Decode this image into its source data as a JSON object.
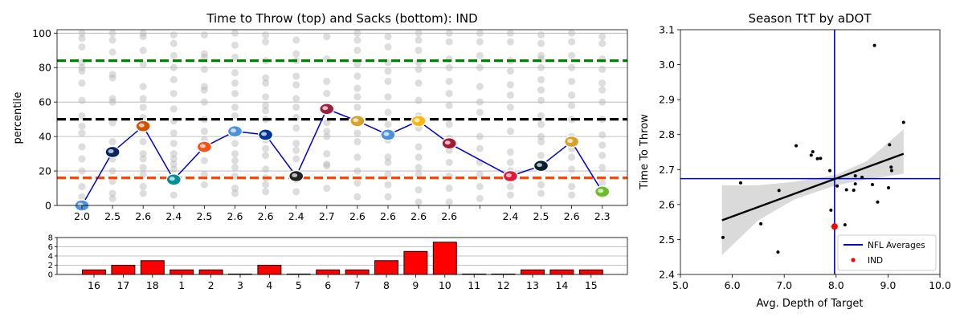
{
  "colors": {
    "line": "#0000cc",
    "bars": "#ff0000",
    "green_ref": "#008000",
    "black_ref": "#000000",
    "orange_ref": "#ff4500",
    "scatter_league": "#000000",
    "ind_point": "#ff0000",
    "nfl_avg": "#0000cc",
    "band": "#d3d3d3"
  },
  "chart_data": [
    {
      "type": "line",
      "title": "Time to Throw (top) and Sacks (bottom): IND",
      "ylabel": "percentile",
      "ylim": [
        0,
        102
      ],
      "yticks": [
        0,
        20,
        40,
        60,
        80,
        100
      ],
      "grid": "y",
      "x_tick_labels": [
        "2.0",
        "2.5",
        "2.6",
        "2.4",
        "2.5",
        "2.6",
        "2.6",
        "2.4",
        "2.7",
        "2.6",
        "2.6",
        "2.6",
        "2.6",
        "",
        "2.4",
        "2.5",
        "2.6",
        "2.3"
      ],
      "opponents": [
        "TEN",
        "NYG",
        "CLE",
        "MIA",
        "DEN",
        "TEN",
        "LAR",
        "LV",
        "ARI",
        "JAX",
        "TEN",
        "PIT",
        "ATL",
        "",
        "KC",
        "HOU",
        "JAX",
        "SEA"
      ],
      "series": [
        {
          "values": [
            0,
            31,
            46,
            15,
            34,
            43,
            41,
            17,
            56,
            49,
            41,
            49,
            36,
            null,
            17,
            23,
            37,
            8
          ]
        }
      ],
      "reference_lines": [
        {
          "value": 84,
          "color": "green"
        },
        {
          "value": 50,
          "color": "black"
        },
        {
          "value": 16,
          "color": "orangered"
        }
      ],
      "background_points": [
        [
          100,
          97,
          92,
          83,
          80,
          78,
          71,
          61,
          52,
          46,
          42,
          34,
          27,
          20,
          11,
          5
        ],
        [
          100,
          96,
          89,
          76,
          74,
          62,
          60,
          48,
          37,
          27,
          20,
          14,
          7,
          4
        ],
        [
          100,
          98,
          90,
          82,
          69,
          62,
          57,
          51,
          37,
          30,
          27,
          22,
          18,
          11,
          7
        ],
        [
          99,
          94,
          87,
          80,
          73,
          65,
          56,
          49,
          42,
          36,
          30,
          27,
          24,
          21,
          16,
          6
        ],
        [
          99,
          88,
          86,
          79,
          69,
          67,
          60,
          50,
          43,
          38,
          33,
          26,
          18,
          12
        ],
        [
          100,
          93,
          86,
          77,
          71,
          65,
          57,
          52,
          44,
          36,
          30,
          26,
          22,
          17,
          10,
          7
        ],
        [
          99,
          95,
          84,
          74,
          71,
          63,
          58,
          55,
          50,
          38,
          33,
          29,
          21,
          16,
          12,
          8
        ],
        [
          96,
          88,
          84,
          75,
          70,
          62,
          57,
          51,
          45,
          36,
          32,
          27,
          15,
          8
        ],
        [
          98,
          85,
          72,
          65,
          55,
          48,
          43,
          40,
          30,
          24,
          23,
          10
        ],
        [
          100,
          96,
          90,
          82,
          75,
          68,
          63,
          57,
          42,
          37,
          28,
          20,
          13,
          5
        ],
        [
          98,
          92,
          83,
          78,
          72,
          63,
          54,
          47,
          38,
          28,
          25,
          18,
          12,
          5
        ],
        [
          100,
          96,
          90,
          83,
          79,
          71,
          61,
          52,
          45,
          34,
          28,
          22,
          18,
          9,
          2
        ],
        [
          100,
          95,
          85,
          80,
          72,
          65,
          58,
          47,
          39,
          32,
          25,
          17,
          10,
          2
        ],
        [
          100,
          95,
          87,
          80,
          69,
          60,
          54,
          40,
          33,
          25,
          18,
          11,
          4
        ],
        [
          100,
          95,
          84,
          78,
          70,
          64,
          57,
          43,
          31,
          25,
          20,
          11,
          6
        ],
        [
          99,
          94,
          87,
          85,
          80,
          73,
          67,
          61,
          52,
          47,
          40,
          37,
          29,
          22,
          12,
          7
        ],
        [
          100,
          95,
          87,
          80,
          72,
          64,
          58,
          50,
          40,
          33,
          28,
          21,
          11,
          6
        ],
        [
          98,
          94,
          85,
          79,
          71,
          67,
          60,
          50,
          41,
          35,
          29,
          22,
          13,
          6
        ]
      ]
    },
    {
      "type": "bar",
      "categories": [
        "16",
        "17",
        "18",
        "1",
        "2",
        "3",
        "4",
        "5",
        "6",
        "7",
        "8",
        "9",
        "10",
        "11",
        "12",
        "13",
        "14",
        "15"
      ],
      "values": [
        1,
        2,
        3,
        1,
        1,
        0,
        2,
        0,
        1,
        1,
        3,
        5,
        7,
        0,
        0,
        1,
        1,
        1
      ],
      "ylim": [
        0,
        8
      ],
      "yticks": [
        0,
        2,
        4,
        6,
        8
      ],
      "grid": "y"
    },
    {
      "type": "scatter",
      "title": "Season TtT by aDOT",
      "xlabel": "Avg. Depth of Target",
      "ylabel": "Time To Throw",
      "xlim": [
        5.0,
        10.0
      ],
      "ylim": [
        2.4,
        3.1
      ],
      "xticks": [
        5.0,
        6.0,
        7.0,
        8.0,
        9.0,
        10.0
      ],
      "yticks": [
        2.4,
        2.5,
        2.6,
        2.7,
        2.8,
        2.9,
        3.0,
        3.1
      ],
      "legend": "lower right",
      "legend_entries": [
        "NFL Averages",
        "IND"
      ],
      "points": [
        [
          5.82,
          2.506
        ],
        [
          6.16,
          2.662
        ],
        [
          6.55,
          2.545
        ],
        [
          6.88,
          2.464
        ],
        [
          6.9,
          2.64
        ],
        [
          7.23,
          2.768
        ],
        [
          7.52,
          2.741
        ],
        [
          7.55,
          2.751
        ],
        [
          7.64,
          2.731
        ],
        [
          7.7,
          2.732
        ],
        [
          7.88,
          2.697
        ],
        [
          7.9,
          2.584
        ],
        [
          8.02,
          2.653
        ],
        [
          8.17,
          2.542
        ],
        [
          8.2,
          2.642
        ],
        [
          8.34,
          2.641
        ],
        [
          8.37,
          2.682
        ],
        [
          8.37,
          2.659
        ],
        [
          8.5,
          2.678
        ],
        [
          8.7,
          2.657
        ],
        [
          8.74,
          3.055
        ],
        [
          8.8,
          2.607
        ],
        [
          9.01,
          2.648
        ],
        [
          9.03,
          2.771
        ],
        [
          9.06,
          2.707
        ],
        [
          9.07,
          2.697
        ],
        [
          9.3,
          2.835
        ]
      ],
      "highlight": {
        "name": "IND",
        "x": 7.97,
        "y": 2.537
      },
      "nfl_average": {
        "x": 7.97,
        "y": 2.674
      },
      "trend": {
        "x": [
          5.8,
          9.3
        ],
        "y": [
          2.555,
          2.745
        ]
      },
      "band_upper": [
        [
          5.8,
          2.655
        ],
        [
          6.5,
          2.655
        ],
        [
          7.2,
          2.665
        ],
        [
          8.0,
          2.685
        ],
        [
          8.6,
          2.725
        ],
        [
          9.3,
          2.815
        ]
      ],
      "band_lower": [
        [
          9.3,
          2.688
        ],
        [
          8.6,
          2.672
        ],
        [
          8.0,
          2.655
        ],
        [
          7.2,
          2.615
        ],
        [
          6.5,
          2.555
        ],
        [
          5.8,
          2.455
        ]
      ]
    }
  ]
}
